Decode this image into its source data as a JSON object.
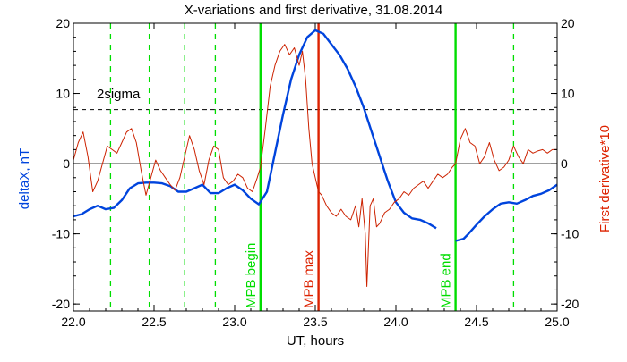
{
  "chart_data": {
    "type": "line",
    "title": "X-variations and first derivative, 31.08.2014",
    "xlabel": "UT, hours",
    "ylabel_left": "deltaX, nT",
    "ylabel_right": "First derivative*10",
    "xlim": [
      22.0,
      25.0
    ],
    "ylim_left": [
      -21,
      20
    ],
    "ylim_right": [
      -21,
      20
    ],
    "x_ticks": [
      "22.0",
      "22.5",
      "23.0",
      "23.5",
      "24.0",
      "24.5",
      "25.0"
    ],
    "y_ticks_left": [
      "-20",
      "-10",
      "0",
      "10",
      "20"
    ],
    "y_ticks_right": [
      "-20",
      "-10",
      "0",
      "10",
      "20"
    ],
    "threshold": {
      "label": "2sigma",
      "y": 7.7
    },
    "markers": [
      {
        "x": 23.16,
        "label": "MPB begin",
        "color": "#00dd00"
      },
      {
        "x": 23.52,
        "label": "MPB max",
        "color": "#dd2200"
      },
      {
        "x": 24.37,
        "label": "MPB end",
        "color": "#00dd00"
      }
    ],
    "dashed_verticals": [
      22.23,
      22.47,
      22.69,
      22.88,
      24.73
    ],
    "colors": {
      "deltaX": "#0044dd",
      "derivative": "#cc2200",
      "marker_green": "#00dd00",
      "marker_red": "#dd2200",
      "left_label": "#0044dd",
      "right_label": "#dd2200"
    },
    "series": [
      {
        "name": "deltaX, nT",
        "color": "#0044dd",
        "segments": [
          {
            "x": [
              22.0,
              22.05,
              22.1,
              22.15,
              22.2,
              22.25,
              22.3,
              22.35,
              22.4,
              22.45,
              22.5,
              22.55,
              22.6,
              22.65,
              22.7,
              22.75,
              22.8,
              22.85,
              22.9,
              22.95,
              23.0,
              23.05,
              23.1,
              23.15,
              23.2,
              23.25,
              23.3,
              23.35,
              23.4,
              23.45,
              23.5,
              23.55,
              23.6,
              23.65,
              23.7,
              23.75,
              23.8,
              23.85,
              23.9,
              23.95,
              24.0,
              24.05,
              24.1,
              24.15,
              24.2,
              24.25
            ],
            "y": [
              -7.5,
              -7.2,
              -6.5,
              -6.0,
              -6.5,
              -6.3,
              -5.2,
              -3.5,
              -2.8,
              -2.7,
              -2.7,
              -2.8,
              -3.2,
              -4.0,
              -4.0,
              -3.5,
              -3.0,
              -4.2,
              -4.2,
              -3.5,
              -3.0,
              -3.8,
              -5.0,
              -5.8,
              -4.0,
              1.5,
              7.0,
              12.0,
              15.5,
              18.0,
              19.0,
              18.5,
              17.0,
              15.5,
              13.5,
              11.0,
              8.0,
              4.5,
              1.0,
              -2.5,
              -5.5,
              -7.0,
              -7.8,
              -8.0,
              -8.5,
              -9.2
            ]
          },
          {
            "x": [
              24.37,
              24.42,
              24.45,
              24.5,
              24.55,
              24.6,
              24.65,
              24.7,
              24.75,
              24.8,
              24.85,
              24.9,
              24.95,
              25.0
            ],
            "y": [
              -11.0,
              -10.7,
              -10.0,
              -8.7,
              -7.5,
              -6.5,
              -5.7,
              -5.5,
              -5.7,
              -5.2,
              -4.6,
              -4.3,
              -3.8,
              -3.0
            ]
          }
        ]
      },
      {
        "name": "First derivative*10",
        "color": "#cc2200",
        "segments": [
          {
            "x": [
              22.0,
              22.03,
              22.06,
              22.09,
              22.12,
              22.15,
              22.18,
              22.21,
              22.24,
              22.27,
              22.3,
              22.33,
              22.36,
              22.39,
              22.42,
              22.45,
              22.48,
              22.51,
              22.54,
              22.57,
              22.6,
              22.63,
              22.66,
              22.69,
              22.72,
              22.75,
              22.78,
              22.81,
              22.84,
              22.87,
              22.9,
              22.93,
              22.96,
              22.99,
              23.02,
              23.05,
              23.08,
              23.11,
              23.14,
              23.16,
              23.19,
              23.22,
              23.25,
              23.28,
              23.31,
              23.34,
              23.37,
              23.4,
              23.42,
              23.44,
              23.46,
              23.48,
              23.5,
              23.52,
              23.54,
              23.57,
              23.6,
              23.63,
              23.66,
              23.69,
              23.72,
              23.75,
              23.77,
              23.79,
              23.81,
              23.82,
              23.84,
              23.86,
              23.88,
              23.9,
              23.93,
              23.96,
              23.99,
              24.02,
              24.05,
              24.08,
              24.11,
              24.14,
              24.17,
              24.2,
              24.23,
              24.26,
              24.29,
              24.32,
              24.35,
              24.37,
              24.4,
              24.43,
              24.46,
              24.49,
              24.52,
              24.55,
              24.58,
              24.61,
              24.64,
              24.67,
              24.7,
              24.73,
              24.76,
              24.79,
              24.82,
              24.85,
              24.88,
              24.91,
              24.94,
              24.97,
              25.0
            ],
            "y": [
              0.5,
              3.0,
              4.5,
              1.0,
              -4.0,
              -2.5,
              0.0,
              2.5,
              2.0,
              1.5,
              3.0,
              4.5,
              5.0,
              3.0,
              -1.0,
              -4.5,
              -2.0,
              0.5,
              -1.0,
              -2.0,
              -3.0,
              -3.8,
              -2.0,
              1.0,
              4.0,
              2.0,
              -1.0,
              -3.0,
              0.5,
              2.5,
              2.0,
              -2.0,
              -3.0,
              -2.5,
              -1.5,
              -2.0,
              -3.5,
              -4.0,
              -2.0,
              -0.5,
              5.0,
              11.0,
              14.0,
              16.0,
              17.0,
              15.5,
              16.5,
              14.0,
              16.0,
              12.0,
              5.0,
              0.0,
              -2.0,
              -4.0,
              -4.5,
              -6.0,
              -7.0,
              -7.5,
              -6.5,
              -7.5,
              -8.0,
              -6.0,
              -9.0,
              -5.0,
              -10.0,
              -17.5,
              -6.0,
              -5.0,
              -9.0,
              -8.5,
              -7.0,
              -6.5,
              -5.5,
              -5.0,
              -4.0,
              -4.5,
              -3.5,
              -3.0,
              -2.5,
              -3.5,
              -2.5,
              -1.5,
              -2.0,
              -1.5,
              -0.5,
              0.0,
              3.5,
              5.0,
              3.0,
              2.5,
              0.0,
              1.0,
              3.0,
              0.5,
              -1.0,
              -0.5,
              0.5,
              2.5,
              1.0,
              0.0,
              2.0,
              1.5,
              1.8,
              2.0,
              1.5,
              2.0,
              2.0
            ]
          }
        ]
      }
    ]
  }
}
